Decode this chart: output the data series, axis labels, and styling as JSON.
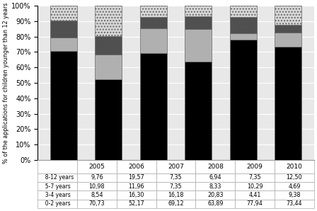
{
  "years": [
    "2005",
    "2006",
    "2007",
    "2008",
    "2009",
    "2010"
  ],
  "series": {
    "0-2 years": [
      70.73,
      52.17,
      69.12,
      63.89,
      77.94,
      73.44
    ],
    "3-4 years": [
      8.54,
      16.3,
      16.18,
      20.83,
      4.41,
      9.38
    ],
    "5-7 years": [
      10.98,
      11.96,
      7.35,
      8.33,
      10.29,
      4.69
    ],
    "8-12 years": [
      9.76,
      19.57,
      7.35,
      6.94,
      7.35,
      12.5
    ]
  },
  "table_data": [
    [
      "8-12 years",
      "9,76",
      "19,57",
      "7,35",
      "6,94",
      "7,35",
      "12,50"
    ],
    [
      "5-7 years",
      "10,98",
      "11,96",
      "7,35",
      "8,33",
      "10,29",
      "4,69"
    ],
    [
      "3-4 years",
      "8,54",
      "16,30",
      "16,18",
      "20,83",
      "4,41",
      "9,38"
    ],
    [
      "0-2 years",
      "70,73",
      "52,17",
      "69,12",
      "63,89",
      "77,94",
      "73,44"
    ]
  ],
  "bar_colors": {
    "0-2 years": "#000000",
    "3-4 years": "#b0b0b0",
    "5-7 years": "#505050",
    "8-12 years": "#d8d8d8"
  },
  "legend_patch_colors": {
    "0-2 years": "#000000",
    "3-4 years": "#b0b0b0",
    "5-7 years": "#505050",
    "8-12 years": "#d8d8d8"
  },
  "ylabel": "% of the applications for children younger than 12 years",
  "ylim": [
    0,
    100
  ],
  "yticks": [
    0,
    10,
    20,
    30,
    40,
    50,
    60,
    70,
    80,
    90,
    100
  ],
  "ytick_labels": [
    "0%",
    "10%",
    "20%",
    "30%",
    "40%",
    "50%",
    "60%",
    "70%",
    "80%",
    "90%",
    "100%"
  ],
  "bar_width": 0.6
}
